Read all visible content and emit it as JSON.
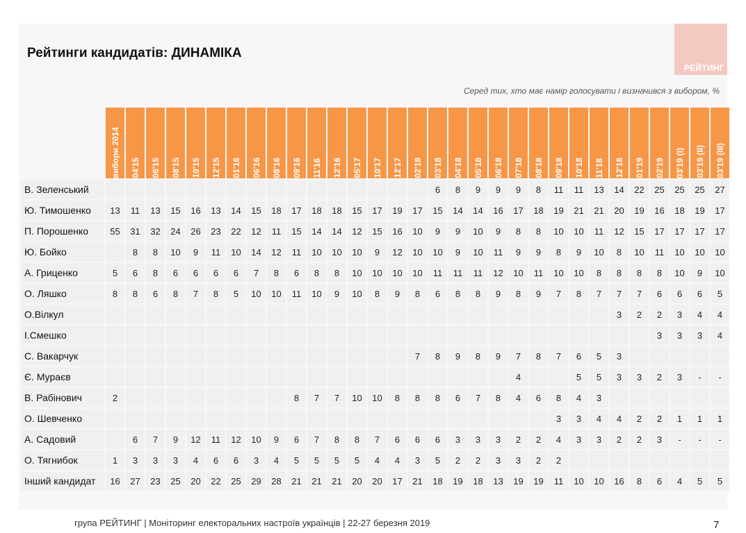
{
  "title": "Рейтинги кандидатів: ДИНАМІКА",
  "logo_text": "РЕЙТИНГ",
  "subtitle": "Серед тих, хто має намір голосувати і визначився з вибором, %",
  "columns": [
    "вибори 2014",
    "04'15",
    "06'15",
    "08'15",
    "10'15",
    "12'15",
    "01'16",
    "06'16",
    "08'16",
    "09'16",
    "11'16",
    "12'16",
    "05'17",
    "10'17",
    "12'17",
    "02'18",
    "03'18",
    "04'18",
    "05'18",
    "06'18",
    "07'18",
    "08'18",
    "09'18",
    "10'18",
    "11'18",
    "12'18",
    "01'19",
    "02'19",
    "03'19 (I)",
    "03'19 (II)",
    "03'19 (III)"
  ],
  "rows": [
    {
      "name": "В. Зеленський",
      "values": [
        "",
        "",
        "",
        "",
        "",
        "",
        "",
        "",
        "",
        "",
        "",
        "",
        "",
        "",
        "",
        "",
        "6",
        "8",
        "9",
        "9",
        "9",
        "8",
        "11",
        "11",
        "13",
        "14",
        "22",
        "25",
        "25",
        "25",
        "27"
      ]
    },
    {
      "name": "Ю. Тимошенко",
      "values": [
        "13",
        "11",
        "13",
        "15",
        "16",
        "13",
        "14",
        "15",
        "18",
        "17",
        "18",
        "18",
        "15",
        "17",
        "19",
        "17",
        "15",
        "14",
        "14",
        "16",
        "17",
        "18",
        "19",
        "21",
        "21",
        "20",
        "19",
        "16",
        "18",
        "19",
        "17"
      ]
    },
    {
      "name": "П. Порошенко",
      "values": [
        "55",
        "31",
        "32",
        "24",
        "26",
        "23",
        "22",
        "12",
        "11",
        "15",
        "14",
        "14",
        "12",
        "15",
        "16",
        "10",
        "9",
        "9",
        "10",
        "9",
        "8",
        "8",
        "10",
        "10",
        "11",
        "12",
        "15",
        "17",
        "17",
        "17",
        "17"
      ]
    },
    {
      "name": "Ю. Бойко",
      "values": [
        "",
        "8",
        "8",
        "10",
        "9",
        "11",
        "10",
        "14",
        "12",
        "11",
        "10",
        "10",
        "10",
        "9",
        "12",
        "10",
        "10",
        "9",
        "10",
        "11",
        "9",
        "9",
        "8",
        "9",
        "10",
        "8",
        "10",
        "11",
        "10",
        "10",
        "10"
      ]
    },
    {
      "name": "А. Гриценко",
      "values": [
        "5",
        "6",
        "8",
        "6",
        "6",
        "6",
        "6",
        "7",
        "8",
        "6",
        "8",
        "8",
        "10",
        "10",
        "10",
        "10",
        "11",
        "11",
        "11",
        "12",
        "10",
        "11",
        "10",
        "10",
        "8",
        "8",
        "8",
        "8",
        "10",
        "9",
        "10"
      ]
    },
    {
      "name": "О. Ляшко",
      "values": [
        "8",
        "8",
        "6",
        "8",
        "7",
        "8",
        "5",
        "10",
        "10",
        "11",
        "10",
        "9",
        "10",
        "8",
        "9",
        "8",
        "6",
        "8",
        "8",
        "9",
        "8",
        "9",
        "7",
        "8",
        "7",
        "7",
        "7",
        "6",
        "6",
        "6",
        "5"
      ]
    },
    {
      "name": "О.Вілкул",
      "values": [
        "",
        "",
        "",
        "",
        "",
        "",
        "",
        "",
        "",
        "",
        "",
        "",
        "",
        "",
        "",
        "",
        "",
        "",
        "",
        "",
        "",
        "",
        "",
        "",
        "",
        "3",
        "2",
        "2",
        "3",
        "4",
        "4"
      ]
    },
    {
      "name": "І.Смешко",
      "values": [
        "",
        "",
        "",
        "",
        "",
        "",
        "",
        "",
        "",
        "",
        "",
        "",
        "",
        "",
        "",
        "",
        "",
        "",
        "",
        "",
        "",
        "",
        "",
        "",
        "",
        "",
        "",
        "3",
        "3",
        "3",
        "4"
      ]
    },
    {
      "name": "С. Вакарчук",
      "values": [
        "",
        "",
        "",
        "",
        "",
        "",
        "",
        "",
        "",
        "",
        "",
        "",
        "",
        "",
        "",
        "7",
        "8",
        "9",
        "8",
        "9",
        "7",
        "8",
        "7",
        "6",
        "5",
        "3",
        "",
        "",
        "",
        "",
        ""
      ]
    },
    {
      "name": "Є. Мураєв",
      "values": [
        "",
        "",
        "",
        "",
        "",
        "",
        "",
        "",
        "",
        "",
        "",
        "",
        "",
        "",
        "",
        "",
        "",
        "",
        "",
        "",
        "4",
        "",
        "",
        "5",
        "5",
        "3",
        "3",
        "2",
        "3",
        "-",
        "-"
      ]
    },
    {
      "name": "В. Рабінович",
      "values": [
        "2",
        "",
        "",
        "",
        "",
        "",
        "",
        "",
        "",
        "8",
        "7",
        "7",
        "10",
        "10",
        "8",
        "8",
        "8",
        "6",
        "7",
        "8",
        "4",
        "6",
        "8",
        "4",
        "3",
        "",
        "",
        "",
        "",
        "",
        ""
      ]
    },
    {
      "name": "О. Шевченко",
      "values": [
        "",
        "",
        "",
        "",
        "",
        "",
        "",
        "",
        "",
        "",
        "",
        "",
        "",
        "",
        "",
        "",
        "",
        "",
        "",
        "",
        "",
        "",
        "3",
        "3",
        "4",
        "4",
        "2",
        "2",
        "1",
        "1",
        "1"
      ]
    },
    {
      "name": "А. Садовий",
      "values": [
        "",
        "6",
        "7",
        "9",
        "12",
        "11",
        "12",
        "10",
        "9",
        "6",
        "7",
        "8",
        "8",
        "7",
        "6",
        "6",
        "6",
        "3",
        "3",
        "3",
        "2",
        "2",
        "4",
        "3",
        "3",
        "2",
        "2",
        "3",
        "-",
        "-",
        "-"
      ]
    },
    {
      "name": "О. Тягнибок",
      "values": [
        "1",
        "3",
        "3",
        "3",
        "4",
        "6",
        "6",
        "3",
        "4",
        "5",
        "5",
        "5",
        "5",
        "4",
        "4",
        "3",
        "5",
        "2",
        "2",
        "3",
        "3",
        "2",
        "2",
        "",
        "",
        "",
        "",
        "",
        "",
        "",
        ""
      ]
    },
    {
      "name": "Інший кандидат",
      "values": [
        "16",
        "27",
        "23",
        "25",
        "20",
        "22",
        "25",
        "29",
        "28",
        "21",
        "21",
        "21",
        "20",
        "20",
        "17",
        "21",
        "18",
        "19",
        "18",
        "13",
        "19",
        "19",
        "11",
        "10",
        "10",
        "16",
        "8",
        "6",
        "4",
        "5",
        "5"
      ]
    }
  ],
  "footer": "група РЕЙТИНГ | Моніторинг електоральних настроїв українців  |  22-27 березня 2019",
  "page_number": "7",
  "colors": {
    "header_bg": "#f79646",
    "cell_bg": "#f0f0f0",
    "logo_bg": "#f4c9c2"
  }
}
